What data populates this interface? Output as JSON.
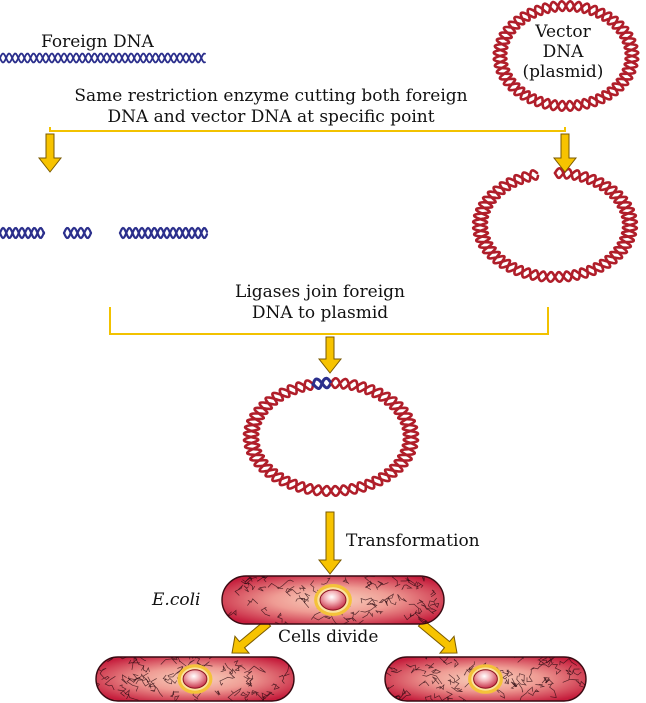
{
  "labels": {
    "foreign_dna": "Foreign DNA",
    "vector_line1": "Vector",
    "vector_line2": "DNA",
    "vector_line3": "(plasmid)",
    "restriction_line1": "Same restriction enzyme cutting both foreign",
    "restriction_line2": "DNA and vector DNA at specific point",
    "ligase_line1": "Ligases join foreign",
    "ligase_line2": "DNA to plasmid",
    "transformation": "Transformation",
    "ecoli": "E.coli",
    "cells_divide": "Cells divide"
  },
  "colors": {
    "foreign_dna": "#2b2f8c",
    "plasmid_dna": "#b01e2a",
    "arrow": "#f7c300",
    "arrow_outline": "#7a5a00",
    "bracket_line": "#f2c200",
    "cell_edge": "#c9223e",
    "cell_center": "#f6c6b0",
    "nucleoid_ring": "#f4c23a"
  },
  "icons": [
    "down-arrow-icon",
    "diagonal-arrow-icon",
    "bacterium-icon",
    "plasmid-ring-icon"
  ]
}
